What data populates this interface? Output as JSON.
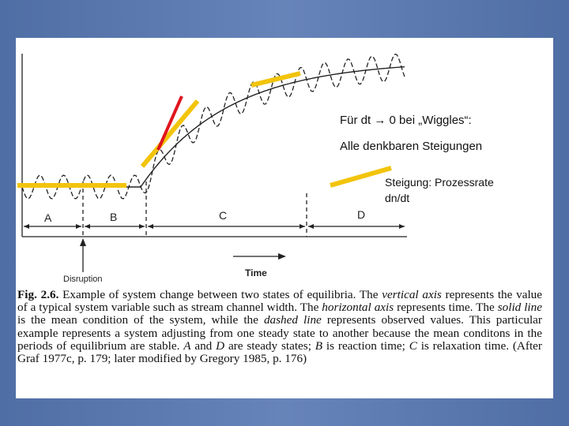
{
  "figure": {
    "segment_labels": [
      "A",
      "B",
      "C",
      "D"
    ],
    "disruption": "Disruption",
    "time": "Time"
  },
  "notes": {
    "line1": "Für dt → 0 bei „Wiggles“:",
    "line2": "Alle denkbaren Steigungen",
    "legend_line1": "Steigung: Prozessrate",
    "legend_line2": "dn/dt"
  },
  "caption": [
    "Fig. 2.6.",
    " Example of system change between two states of equilibria. The ",
    "vertical axis",
    " represents the value of a typical system variable such as stream channel width. The ",
    "horizontal axis",
    " represents time. The ",
    "solid line",
    " is the mean condition of the system, while the ",
    "dashed line",
    " represents observed values. This particular example represents a system adjusting from one steady state to another because the mean conditons in the periods of equilibrium are stable. ",
    "A",
    " and ",
    "D",
    " are steady states; ",
    "B",
    " is reaction time; ",
    "C",
    " is relaxation time. (After Graf 1977c, p. 179; later modified by Gregory 1985, p. 176)"
  ]
}
